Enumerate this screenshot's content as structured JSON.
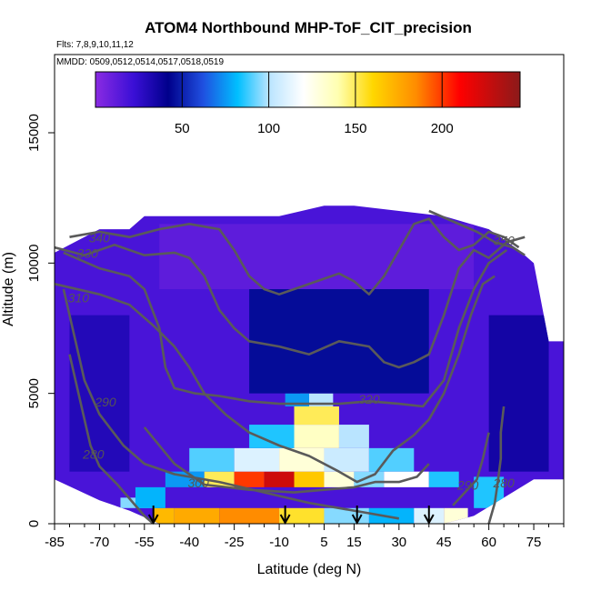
{
  "chart_data": {
    "type": "heatmap",
    "title": "ATOM4 Northbound MHP-ToF_CIT_precision",
    "flights_label": "Flts: 7,8,9,10,11,12",
    "dates_label": "MMDD: 0509,0512,0514,0517,0518,0519",
    "xlabel": "Latitude (deg N)",
    "ylabel": "Altitude (m)",
    "xlim": [
      -85,
      85
    ],
    "ylim": [
      0,
      18000
    ],
    "x_ticks": [
      -85,
      -70,
      -55,
      -40,
      -25,
      -10,
      5,
      15,
      30,
      45,
      60,
      75
    ],
    "y_ticks": [
      0,
      5000,
      10000,
      15000
    ],
    "colorbar": {
      "min": 0,
      "max": 245,
      "ticks": [
        50,
        100,
        150,
        200
      ],
      "stops": [
        {
          "v": 0,
          "color": "#8a2be2"
        },
        {
          "v": 22,
          "color": "#3a0fd6"
        },
        {
          "v": 42,
          "color": "#00008b"
        },
        {
          "v": 62,
          "color": "#1f4fe0"
        },
        {
          "v": 82,
          "color": "#00bfff"
        },
        {
          "v": 100,
          "color": "#b9e4ff"
        },
        {
          "v": 120,
          "color": "#ffffff"
        },
        {
          "v": 140,
          "color": "#ffffb0"
        },
        {
          "v": 160,
          "color": "#ffd700"
        },
        {
          "v": 185,
          "color": "#ff8c00"
        },
        {
          "v": 210,
          "color": "#ff0000"
        },
        {
          "v": 245,
          "color": "#8b1a1a"
        }
      ]
    },
    "coverage_top_m": [
      [
        -85,
        10400
      ],
      [
        -80,
        10700
      ],
      [
        -70,
        11300
      ],
      [
        -60,
        11300
      ],
      [
        -55,
        11800
      ],
      [
        -40,
        11800
      ],
      [
        -25,
        11800
      ],
      [
        -10,
        11800
      ],
      [
        5,
        12200
      ],
      [
        15,
        12200
      ],
      [
        30,
        12000
      ],
      [
        45,
        11800
      ],
      [
        60,
        11300
      ],
      [
        70,
        10500
      ],
      [
        75,
        10000
      ],
      [
        80,
        7000
      ],
      [
        85,
        7000
      ]
    ],
    "coverage_bottom_m": [
      [
        -85,
        1700
      ],
      [
        -70,
        900
      ],
      [
        -60,
        500
      ],
      [
        -50,
        0
      ],
      [
        -40,
        0
      ],
      [
        -25,
        0
      ],
      [
        -10,
        0
      ],
      [
        5,
        0
      ],
      [
        15,
        0
      ],
      [
        30,
        0
      ],
      [
        45,
        0
      ],
      [
        55,
        300
      ],
      [
        65,
        1000
      ],
      [
        75,
        1700
      ],
      [
        85,
        1700
      ]
    ],
    "field_cells": [
      {
        "lat": [
          -63,
          -52
        ],
        "alt": [
          600,
          1000
        ],
        "value": 95
      },
      {
        "lat": [
          -52,
          -45
        ],
        "alt": [
          0,
          600
        ],
        "value": 170
      },
      {
        "lat": [
          -45,
          -30
        ],
        "alt": [
          0,
          600
        ],
        "value": 175
      },
      {
        "lat": [
          -30,
          -10
        ],
        "alt": [
          0,
          600
        ],
        "value": 185
      },
      {
        "lat": [
          -10,
          5
        ],
        "alt": [
          0,
          600
        ],
        "value": 155
      },
      {
        "lat": [
          5,
          20
        ],
        "alt": [
          0,
          600
        ],
        "value": 95
      },
      {
        "lat": [
          20,
          35
        ],
        "alt": [
          0,
          600
        ],
        "value": 80
      },
      {
        "lat": [
          35,
          45
        ],
        "alt": [
          0,
          600
        ],
        "value": 110
      },
      {
        "lat": [
          45,
          53
        ],
        "alt": [
          0,
          600
        ],
        "value": 130
      },
      {
        "lat": [
          -58,
          -48
        ],
        "alt": [
          600,
          1400
        ],
        "value": 80
      },
      {
        "lat": [
          -48,
          -35
        ],
        "alt": [
          1400,
          2000
        ],
        "value": 75
      },
      {
        "lat": [
          -35,
          -25
        ],
        "alt": [
          1400,
          2000
        ],
        "value": 150
      },
      {
        "lat": [
          -25,
          -15
        ],
        "alt": [
          1400,
          2000
        ],
        "value": 200
      },
      {
        "lat": [
          -15,
          -5
        ],
        "alt": [
          1400,
          2000
        ],
        "value": 225
      },
      {
        "lat": [
          -5,
          5
        ],
        "alt": [
          1400,
          2000
        ],
        "value": 165
      },
      {
        "lat": [
          5,
          15
        ],
        "alt": [
          1400,
          2000
        ],
        "value": 130
      },
      {
        "lat": [
          15,
          25
        ],
        "alt": [
          1400,
          2000
        ],
        "value": 95
      },
      {
        "lat": [
          25,
          40
        ],
        "alt": [
          1400,
          2000
        ],
        "value": 120
      },
      {
        "lat": [
          40,
          50
        ],
        "alt": [
          1400,
          2000
        ],
        "value": 85
      },
      {
        "lat": [
          -40,
          -25
        ],
        "alt": [
          2000,
          2900
        ],
        "value": 90
      },
      {
        "lat": [
          -25,
          -10
        ],
        "alt": [
          2000,
          2900
        ],
        "value": 110
      },
      {
        "lat": [
          -10,
          5
        ],
        "alt": [
          2000,
          2900
        ],
        "value": 130
      },
      {
        "lat": [
          5,
          20
        ],
        "alt": [
          2000,
          2900
        ],
        "value": 105
      },
      {
        "lat": [
          20,
          35
        ],
        "alt": [
          2000,
          2900
        ],
        "value": 90
      },
      {
        "lat": [
          -20,
          -5
        ],
        "alt": [
          2900,
          3800
        ],
        "value": 85
      },
      {
        "lat": [
          -5,
          10
        ],
        "alt": [
          2900,
          3800
        ],
        "value": 135
      },
      {
        "lat": [
          10,
          20
        ],
        "alt": [
          2900,
          3800
        ],
        "value": 100
      },
      {
        "lat": [
          -5,
          10
        ],
        "alt": [
          3800,
          4500
        ],
        "value": 150
      },
      {
        "lat": [
          -3,
          8
        ],
        "alt": [
          4500,
          5000
        ],
        "value": 100
      },
      {
        "lat": [
          -8,
          0
        ],
        "alt": [
          4500,
          5000
        ],
        "value": 75
      },
      {
        "lat": [
          55,
          65
        ],
        "alt": [
          600,
          1800
        ],
        "value": 85
      },
      {
        "lat": [
          -80,
          -60
        ],
        "alt": [
          2000,
          8000
        ],
        "value": 30
      },
      {
        "lat": [
          60,
          80
        ],
        "alt": [
          2000,
          8000
        ],
        "value": 35
      },
      {
        "lat": [
          -20,
          40
        ],
        "alt": [
          5000,
          9000
        ],
        "value": 45
      },
      {
        "lat": [
          -50,
          55
        ],
        "alt": [
          9000,
          11500
        ],
        "value": 12
      }
    ],
    "contours": [
      {
        "label": "280",
        "label_at": [
          -72,
          2500
        ],
        "points": [
          [
            -80,
            6500
          ],
          [
            -76,
            4500
          ],
          [
            -73,
            3000
          ],
          [
            -70,
            2200
          ],
          [
            -64,
            1500
          ],
          [
            -58,
            700
          ],
          [
            -55,
            300
          ],
          [
            -52,
            0
          ]
        ]
      },
      {
        "label": "280",
        "label_at": [
          65,
          1400
        ],
        "points": [
          [
            60,
            0
          ],
          [
            62,
            800
          ],
          [
            63,
            1600
          ],
          [
            64,
            2500
          ],
          [
            64,
            3500
          ],
          [
            65,
            4500
          ]
        ]
      },
      {
        "label": "290",
        "label_at": [
          -68,
          4500
        ],
        "points": [
          [
            -82,
            9000
          ],
          [
            -78,
            7000
          ],
          [
            -75,
            5500
          ],
          [
            -70,
            4200
          ],
          [
            -62,
            3000
          ],
          [
            -55,
            2300
          ],
          [
            -45,
            1900
          ],
          [
            -30,
            1600
          ],
          [
            -15,
            1200
          ],
          [
            0,
            800
          ],
          [
            10,
            600
          ],
          [
            20,
            400
          ],
          [
            30,
            200
          ]
        ]
      },
      {
        "label": "290",
        "label_at": [
          53,
          1300
        ],
        "points": [
          [
            48,
            700
          ],
          [
            52,
            1200
          ],
          [
            56,
            1700
          ],
          [
            58,
            2500
          ],
          [
            60,
            3500
          ]
        ]
      },
      {
        "label": "300",
        "label_at": [
          -37,
          1400
        ],
        "points": [
          [
            -55,
            3700
          ],
          [
            -45,
            2300
          ],
          [
            -35,
            1500
          ],
          [
            -20,
            1300
          ],
          [
            -5,
            1200
          ],
          [
            5,
            1300
          ],
          [
            15,
            1400
          ],
          [
            22,
            1600
          ],
          [
            30,
            1600
          ],
          [
            36,
            1800
          ],
          [
            40,
            2300
          ]
        ]
      },
      {
        "label": "310",
        "label_at": [
          -77,
          8500
        ],
        "points": [
          [
            -85,
            9200
          ],
          [
            -70,
            8800
          ],
          [
            -60,
            8400
          ],
          [
            -52,
            7600
          ],
          [
            -45,
            6800
          ],
          [
            -40,
            6000
          ],
          [
            -35,
            5000
          ],
          [
            -28,
            4200
          ],
          [
            -20,
            3500
          ],
          [
            -10,
            3000
          ],
          [
            0,
            2600
          ],
          [
            10,
            2000
          ],
          [
            16,
            1600
          ],
          [
            22,
            1900
          ],
          [
            28,
            2800
          ],
          [
            35,
            3400
          ],
          [
            40,
            4000
          ],
          [
            45,
            5000
          ],
          [
            50,
            6500
          ],
          [
            54,
            8000
          ],
          [
            58,
            9200
          ],
          [
            62,
            9500
          ]
        ]
      },
      {
        "label": "320",
        "label_at": [
          20,
          4600
        ],
        "points": [
          [
            -82,
            10400
          ],
          [
            -70,
            9800
          ],
          [
            -60,
            9500
          ],
          [
            -55,
            9000
          ],
          [
            -50,
            7500
          ],
          [
            -48,
            6000
          ],
          [
            -45,
            5200
          ],
          [
            -38,
            5000
          ],
          [
            -30,
            4900
          ],
          [
            -20,
            4700
          ],
          [
            -10,
            4600
          ],
          [
            0,
            4600
          ],
          [
            10,
            4600
          ],
          [
            20,
            4700
          ],
          [
            30,
            4600
          ],
          [
            38,
            4500
          ],
          [
            45,
            5500
          ],
          [
            50,
            7500
          ],
          [
            55,
            9000
          ],
          [
            60,
            10000
          ],
          [
            66,
            10500
          ]
        ]
      },
      {
        "label": "330",
        "label_at": [
          -74,
          10200
        ],
        "points": [
          [
            -85,
            10600
          ],
          [
            -75,
            10300
          ],
          [
            -65,
            10700
          ],
          [
            -55,
            10300
          ],
          [
            -45,
            10400
          ],
          [
            -40,
            10200
          ],
          [
            -35,
            9500
          ],
          [
            -30,
            8200
          ],
          [
            -25,
            7500
          ],
          [
            -20,
            7000
          ],
          [
            -10,
            6800
          ],
          [
            0,
            6500
          ],
          [
            10,
            7000
          ],
          [
            20,
            6800
          ],
          [
            25,
            6200
          ],
          [
            30,
            6000
          ],
          [
            35,
            6200
          ],
          [
            40,
            6500
          ],
          [
            45,
            8000
          ],
          [
            50,
            9800
          ],
          [
            55,
            10500
          ],
          [
            60,
            10200
          ],
          [
            66,
            10800
          ],
          [
            72,
            11000
          ]
        ]
      },
      {
        "label": "340",
        "label_at": [
          -70,
          10800
        ],
        "points": [
          [
            -80,
            11000
          ],
          [
            -70,
            11200
          ],
          [
            -60,
            11000
          ],
          [
            -50,
            11300
          ],
          [
            -40,
            11500
          ],
          [
            -30,
            11300
          ],
          [
            -25,
            10500
          ],
          [
            -20,
            9500
          ],
          [
            -15,
            9000
          ],
          [
            -10,
            8800
          ],
          [
            -5,
            9000
          ],
          [
            5,
            9400
          ],
          [
            10,
            9600
          ],
          [
            15,
            9300
          ],
          [
            20,
            8800
          ],
          [
            25,
            9500
          ],
          [
            30,
            10500
          ],
          [
            35,
            11500
          ],
          [
            40,
            11700
          ],
          [
            45,
            11000
          ],
          [
            50,
            10500
          ],
          [
            55,
            10700
          ],
          [
            60,
            11200
          ],
          [
            65,
            11000
          ],
          [
            70,
            10600
          ]
        ]
      },
      {
        "label": "350",
        "label_at": [
          65,
          10700
        ],
        "points": [
          [
            40,
            12000
          ],
          [
            48,
            11600
          ],
          [
            56,
            11200
          ],
          [
            62,
            10800
          ],
          [
            68,
            10600
          ],
          [
            72,
            10300
          ]
        ]
      }
    ],
    "arrows_lat": [
      -52,
      -8,
      16,
      40
    ]
  }
}
